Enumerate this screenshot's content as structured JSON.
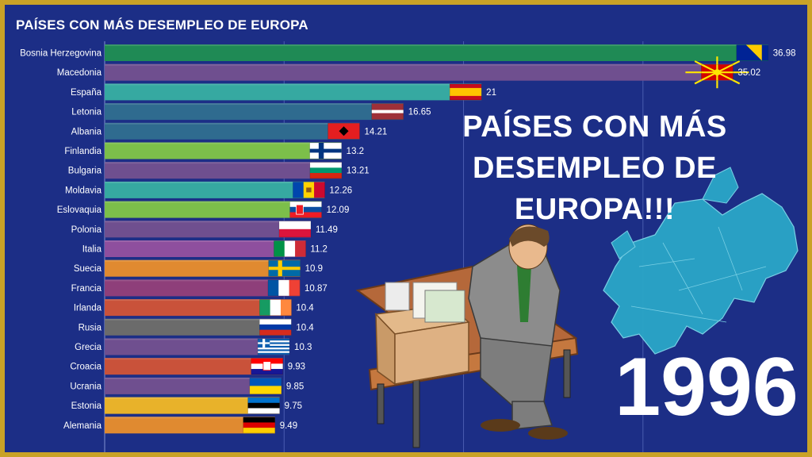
{
  "chart_data": {
    "type": "bar",
    "orientation": "horizontal",
    "title": "PAÍSES CON MÁS DESEMPLEO DE EUROPA",
    "year": "1996",
    "overlay_text": [
      "PAÍSES CON MÁS",
      "DESEMPLEO DE EUROPA!!!"
    ],
    "categories": [
      "Bosnia Herzegovina",
      "Macedonia",
      "España",
      "Letonia",
      "Albania",
      "Finlandia",
      "Bulgaria",
      "Moldavia",
      "Eslovaquia",
      "Polonia",
      "Italia",
      "Suecia",
      "Francia",
      "Irlanda",
      "Rusia",
      "Grecia",
      "Croacia",
      "Ucrania",
      "Estonia",
      "Alemania"
    ],
    "values": [
      36.98,
      35.02,
      21,
      16.65,
      14.21,
      13.2,
      13.21,
      12.26,
      12.09,
      11.49,
      11.2,
      10.9,
      10.87,
      10.4,
      10.4,
      10.3,
      9.93,
      9.85,
      9.75,
      9.49
    ],
    "value_labels": [
      "36.98",
      "35.02",
      "21",
      "16.65",
      "14.21",
      "13.2",
      "13.21",
      "12.26",
      "12.09",
      "11.49",
      "11.2",
      "10.9",
      "10.87",
      "10.4",
      "10.4",
      "10.3",
      "9.93",
      "9.85",
      "9.75",
      "9.49"
    ],
    "bar_colors": [
      "#1f8a55",
      "#6f4f8f",
      "#36a9a1",
      "#2f6b8f",
      "#2f6b8f",
      "#7cbf4a",
      "#6f4f8f",
      "#36a9a1",
      "#7cbf4a",
      "#6f4f8f",
      "#8e4f9e",
      "#e08a30",
      "#8e3f7a",
      "#c9523a",
      "#6b6b6b",
      "#6f4f8f",
      "#c9523a",
      "#6f4f8f",
      "#e8b22a",
      "#e08a30"
    ],
    "flags": [
      "bosnia-flag",
      "macedonia-flag",
      "spain-flag",
      "latvia-flag",
      "albania-flag",
      "finland-flag",
      "bulgaria-flag",
      "moldova-flag",
      "slovakia-flag",
      "poland-flag",
      "italy-flag",
      "sweden-flag",
      "france-flag",
      "ireland-flag",
      "russia-flag",
      "greece-flag",
      "croatia-flag",
      "ukraine-flag",
      "estonia-flag",
      "germany-flag"
    ],
    "xlim": [
      0,
      37.3
    ],
    "grid": true,
    "gridlines": [
      10,
      20,
      30
    ],
    "legend": "none"
  },
  "colors": {
    "background": "#1c2e86",
    "border": "#c9a227",
    "text": "#ffffff"
  },
  "illustration": {
    "figure": "unemployed-man-on-bench",
    "map": "europe-map"
  }
}
